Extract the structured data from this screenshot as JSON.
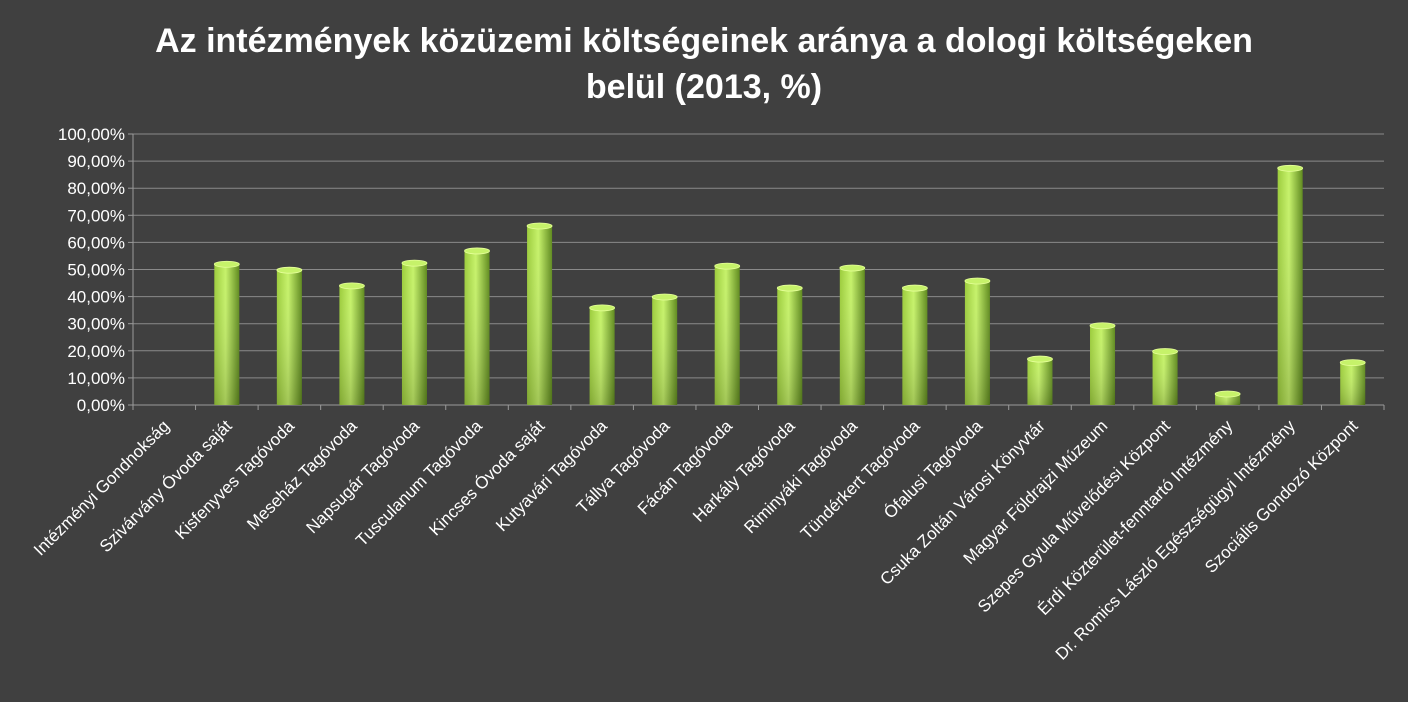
{
  "chart_data": {
    "type": "bar",
    "title_lines": [
      "Az intézmények közüzemi költségeinek aránya a dologi költségeken",
      "belül (2013, %)"
    ],
    "categories": [
      "Intézményi Gondnokság",
      "Szivárvány Óvoda saját",
      "Kisfenyves Tagóvoda",
      "Meseház Tagóvoda",
      "Napsugár Tagóvoda",
      "Tusculanum Tagóvoda",
      "Kincses Óvoda saját",
      "Kutyavári Tagóvoda",
      "Tállya Tagóvoda",
      "Fácán Tagóvoda",
      "Harkály Tagóvoda",
      "Riminyáki Tagóvoda",
      "Tündérkert Tagóvoda",
      "Ófalusi Tagóvoda",
      "Csuka Zoltán Városi Könyvtár",
      "Magyar Földrajzi Múzeum",
      "Szepes Gyula Művelődési Központ",
      "Érdi Közterület-fenntartó Intézmény",
      "Dr. Romics László Egészségügyi Intézmény",
      "Szociális Gondozó Központ"
    ],
    "values": [
      0,
      52.5,
      50.3,
      44.5,
      52.9,
      57.4,
      66.6,
      36.4,
      40.4,
      51.8,
      43.7,
      51.1,
      43.7,
      46.3,
      17.5,
      29.8,
      20.3,
      4.6,
      87.9,
      16.2
    ],
    "ylim": [
      0,
      100
    ],
    "yticks": [
      "0,00%",
      "10,00%",
      "20,00%",
      "30,00%",
      "40,00%",
      "50,00%",
      "60,00%",
      "70,00%",
      "80,00%",
      "90,00%",
      "100,00%"
    ],
    "grid": true,
    "legend": "none",
    "colors": {
      "background": "#404040",
      "bar_light": "#c6f26a",
      "bar_mid": "#9ccc3c",
      "bar_dark": "#5f8a1e",
      "grid": "#8a8a8a",
      "axis": "#9a9a9a",
      "text": "#ffffff"
    }
  }
}
